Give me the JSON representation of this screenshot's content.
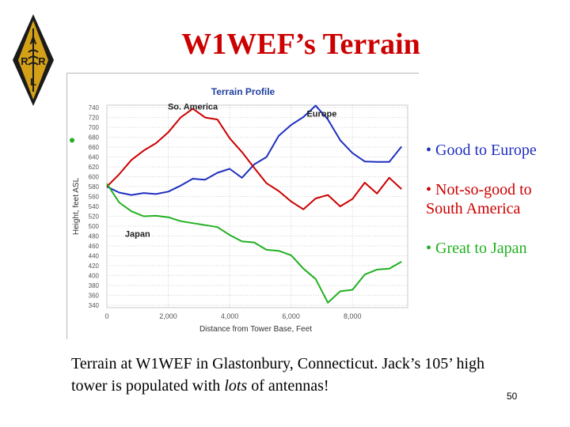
{
  "slide": {
    "title": "W1WEF’s Terrain",
    "bullets": [
      {
        "text": "• Good to Europe"
      },
      {
        "text": "• Not-so-good to South America"
      },
      {
        "text": "• Great to Japan"
      }
    ],
    "caption_part1": "Terrain at W1WEF in Glastonbury, Connecticut. Jack’s 105’ high tower is populated with ",
    "caption_emph": "lots",
    "caption_part2": " of antennas!",
    "page_number": "50"
  },
  "logo": {
    "icon": "arrl-diamond-logo",
    "letters": [
      "A",
      "R",
      "R",
      "L"
    ],
    "color": "#1a1a1a",
    "accent": "#d4a017"
  },
  "colors": {
    "title": "#cc0000",
    "europe": "#1f2fbf",
    "south_america": "#cc0000",
    "japan": "#20b020"
  },
  "chart_data": {
    "type": "line",
    "title": "Terrain Profile",
    "xlabel": "Distance from Tower Base, Feet",
    "ylabel": "Height, feet ASL",
    "xlim": [
      0,
      9800
    ],
    "ylim": [
      335,
      745
    ],
    "x_ticks": [
      0,
      2000,
      4000,
      6000,
      8000
    ],
    "x_tick_labels": [
      "0",
      "2,000",
      "4,000",
      "6,000",
      "8,000"
    ],
    "y_ticks": [
      340,
      360,
      380,
      400,
      420,
      440,
      460,
      480,
      500,
      520,
      540,
      560,
      580,
      600,
      620,
      640,
      660,
      680,
      700,
      720,
      740
    ],
    "grid": true,
    "annotations": [
      {
        "text": "So. America",
        "x": 2800,
        "y": 736
      },
      {
        "text": "Europe",
        "x": 7000,
        "y": 722
      },
      {
        "text": "Japan",
        "x": 1000,
        "y": 478
      }
    ],
    "series": [
      {
        "name": "Europe",
        "color": "#1f2fbf",
        "x": [
          0,
          400,
          800,
          1200,
          1600,
          2000,
          2400,
          2800,
          3200,
          3600,
          4000,
          4400,
          4800,
          5200,
          5600,
          6000,
          6400,
          6800,
          7200,
          7600,
          8000,
          8400,
          8800,
          9200,
          9600
        ],
        "y": [
          580,
          568,
          563,
          567,
          565,
          570,
          582,
          596,
          594,
          608,
          616,
          598,
          625,
          640,
          683,
          705,
          721,
          744,
          716,
          674,
          648,
          631,
          630,
          630,
          661
        ]
      },
      {
        "name": "So. America",
        "color": "#cc0000",
        "x": [
          0,
          400,
          800,
          1200,
          1600,
          2000,
          2400,
          2800,
          3200,
          3600,
          4000,
          4400,
          4800,
          5200,
          5600,
          6000,
          6400,
          6800,
          7200,
          7600,
          8000,
          8400,
          8800,
          9200,
          9600
        ],
        "y": [
          580,
          605,
          634,
          653,
          668,
          690,
          720,
          738,
          720,
          716,
          678,
          650,
          618,
          587,
          571,
          550,
          534,
          556,
          563,
          540,
          555,
          588,
          566,
          598,
          575
        ]
      },
      {
        "name": "Japan",
        "color": "#20b020",
        "x": [
          0,
          400,
          800,
          1200,
          1600,
          2000,
          2400,
          2800,
          3200,
          3600,
          4000,
          4400,
          4800,
          5200,
          5600,
          6000,
          6400,
          6800,
          7200,
          7600,
          8000,
          8400,
          8800,
          9200,
          9600
        ],
        "y": [
          586,
          548,
          530,
          520,
          521,
          518,
          510,
          506,
          502,
          498,
          482,
          469,
          467,
          452,
          450,
          441,
          414,
          393,
          345,
          368,
          371,
          402,
          412,
          414,
          428
        ]
      }
    ]
  }
}
